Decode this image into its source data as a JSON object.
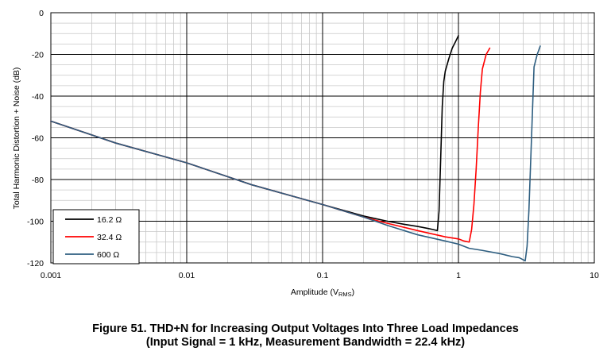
{
  "figure": {
    "caption_line_1": "Figure 51.  THD+N for Increasing Output Voltages Into Three Load Impedances",
    "caption_line_2": "(Input Signal = 1 kHz, Measurement Bandwidth = 22.4 kHz)"
  },
  "chart_data": {
    "type": "line",
    "title": "",
    "xlabel": "Amplitude (V",
    "xlabel_sub": "RMS",
    "xlabel_suffix": ")",
    "ylabel": "Total Harmonic Distortion + Noise (dB)",
    "xscale": "log",
    "xlim": [
      0.001,
      10
    ],
    "ylim": [
      -120,
      0
    ],
    "xticks": [
      0.001,
      0.01,
      0.1,
      1,
      10
    ],
    "xtick_labels": [
      "0.001",
      "0.01",
      "0.1",
      "1",
      "10"
    ],
    "yticks": [
      0,
      -20,
      -40,
      -60,
      -80,
      -100,
      -120
    ],
    "ytick_labels": [
      "0",
      "-20",
      "-40",
      "-60",
      "-80",
      "-100",
      "-120"
    ],
    "grid": true,
    "legend_position": "bottom-left",
    "series": [
      {
        "name": "16.2 Ω",
        "color": "#000000",
        "x": [
          0.001,
          0.003,
          0.01,
          0.03,
          0.1,
          0.2,
          0.3,
          0.4,
          0.5,
          0.6,
          0.65,
          0.7,
          0.72,
          0.74,
          0.76,
          0.78,
          0.8,
          0.85,
          0.9,
          0.95,
          1.0
        ],
        "y": [
          -52,
          -62.5,
          -72,
          -82.5,
          -92,
          -97.5,
          -100,
          -101.5,
          -102.5,
          -103.5,
          -104,
          -104.5,
          -95,
          -70,
          -45,
          -33,
          -28,
          -22,
          -17,
          -14,
          -11
        ]
      },
      {
        "name": "32.4 Ω",
        "color": "#ff0000",
        "x": [
          0.001,
          0.003,
          0.01,
          0.03,
          0.1,
          0.2,
          0.3,
          0.5,
          0.8,
          1.0,
          1.1,
          1.2,
          1.25,
          1.3,
          1.35,
          1.4,
          1.45,
          1.5,
          1.6,
          1.7
        ],
        "y": [
          -52,
          -62.5,
          -72,
          -82.5,
          -92,
          -98,
          -101,
          -104.5,
          -107.5,
          -108.5,
          -109.5,
          -110,
          -104,
          -92,
          -75,
          -55,
          -38,
          -27,
          -20,
          -17
        ]
      },
      {
        "name": "600 Ω",
        "color": "#2e5e80",
        "x": [
          0.001,
          0.003,
          0.01,
          0.03,
          0.1,
          0.2,
          0.3,
          0.5,
          0.8,
          1.0,
          1.2,
          1.5,
          2.0,
          2.5,
          2.8,
          3.0,
          3.1,
          3.2,
          3.3,
          3.45,
          3.6,
          3.8,
          4.0
        ],
        "y": [
          -52,
          -62.5,
          -72,
          -82.5,
          -92,
          -98,
          -102,
          -106.5,
          -109.5,
          -111,
          -113,
          -114,
          -115.5,
          -117,
          -117.5,
          -118.5,
          -119,
          -112,
          -95,
          -60,
          -26,
          -20,
          -16
        ]
      }
    ]
  }
}
